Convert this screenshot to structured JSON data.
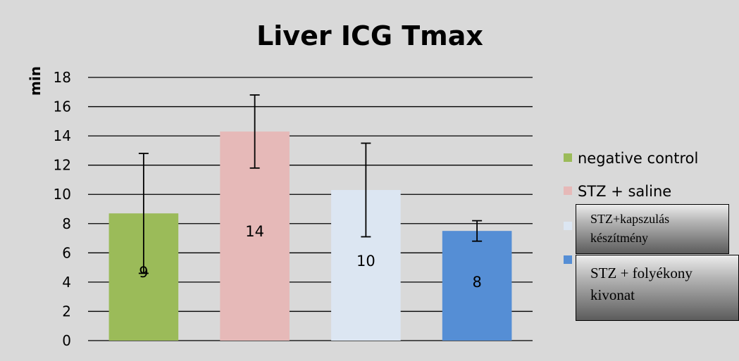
{
  "chart_data": {
    "type": "bar",
    "title": "Liver ICG Tmax",
    "ylabel": "min",
    "xlabel": "",
    "ylim": [
      0,
      18
    ],
    "ytick_step": 2,
    "grid": true,
    "legend_position": "right",
    "categories": [
      "negative control",
      "STZ + saline",
      "STZ+kapszulás készítmény",
      "STZ + folyékony kivonat"
    ],
    "values": [
      8.7,
      14.3,
      10.3,
      7.5
    ],
    "error": [
      4.1,
      2.5,
      3.2,
      0.7
    ],
    "data_labels": [
      "9",
      "14",
      "10",
      "8"
    ],
    "colors": [
      "#9bbb59",
      "#e6b9b8",
      "#dce6f2",
      "#558ed5"
    ]
  },
  "overlay_boxes": {
    "box1_line1": "STZ+kapszulás",
    "box1_line2": "készítmény",
    "box2_line1": "STZ + folyékony",
    "box2_line2": "kivonat"
  }
}
